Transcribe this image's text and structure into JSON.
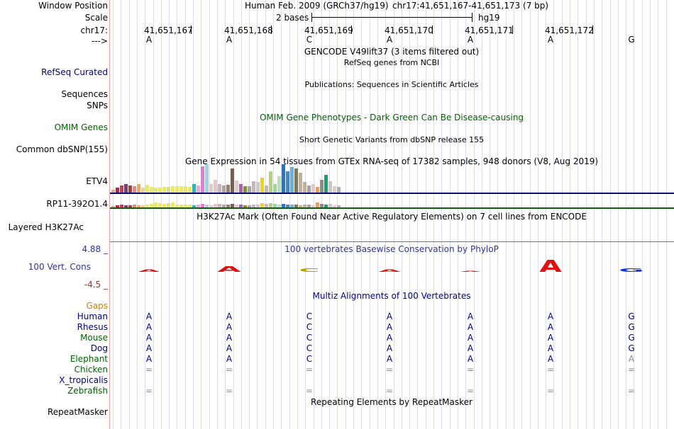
{
  "header": {
    "window_position_label": "Window Position",
    "scale_label": "Scale",
    "chrom_label": "chr17:",
    "strand_label": "--->",
    "assembly_text": "Human Feb. 2009 (GRCh37/hg19)",
    "position_text": "chr17:41,651,167-41,651,173 (7 bp)",
    "scale_text": "2 bases",
    "scale_db": "hg19",
    "coords": [
      "41,651,167",
      "41,651,168",
      "41,651,169",
      "41,651,170",
      "41,651,171",
      "41,651,172"
    ],
    "bases": [
      "A",
      "A",
      "C",
      "A",
      "A",
      "A",
      "G"
    ]
  },
  "tracks": {
    "gencode_title": "GENCODE V49lift37 (3 items filtered out)",
    "refseq_label": "RefSeq Curated",
    "refseq_title": "RefSeq genes from NCBI",
    "publications_title": "Publications: Sequences in Scientific Articles",
    "sequences_label": "Sequences",
    "snps_label": "SNPs",
    "omim_title": "OMIM Gene Phenotypes - Dark Green Can Be Disease-causing",
    "omim_label": "OMIM Genes",
    "dbsnp_title": "Short Genetic Variants from dbSNP release 155",
    "dbsnp_label": "Common dbSNP(155)",
    "gtex_title": "Gene Expression in 54 tissues from GTEx RNA-seq of 17382 samples, 948 donors (V8, Aug 2019)",
    "gtex_gene1": "ETV4",
    "gtex_gene2": "RP11-392O1.4",
    "h3k27_title": "H3K27Ac Mark (Often Found Near Active Regulatory Elements) on 7 cell lines from ENCODE",
    "h3k27_label": "Layered H3K27Ac",
    "cons_title": "100 vertebrates Basewise Conservation by PhyloP",
    "cons_label": "100 Vert. Cons",
    "cons_max": "4.88 _",
    "cons_min": "-4.5 _",
    "multiz_title": "Multiz Alignments of 100 Vertebrates",
    "gaps_label": "Gaps",
    "repeat_title": "Repeating Elements by RepeatMasker",
    "repeat_label": "RepeatMasker"
  },
  "alignment": {
    "species": [
      {
        "name": "Human",
        "row": [
          "A",
          "A",
          "C",
          "A",
          "A",
          "A",
          "G"
        ]
      },
      {
        "name": "Rhesus",
        "row": [
          "A",
          "A",
          "C",
          "A",
          "A",
          "A",
          "G"
        ]
      },
      {
        "name": "Mouse",
        "row": [
          "A",
          "A",
          "C",
          "A",
          "A",
          "A",
          "G"
        ]
      },
      {
        "name": "Dog",
        "row": [
          "A",
          "A",
          "C",
          "A",
          "A",
          "A",
          "G"
        ]
      },
      {
        "name": "Elephant",
        "row": [
          "A",
          "A",
          "C",
          "A",
          "A",
          "A",
          "A"
        ]
      },
      {
        "name": "Chicken",
        "row": [
          "=",
          "=",
          "=",
          "=",
          "=",
          "=",
          "="
        ]
      },
      {
        "name": "X_tropicalis",
        "row": [
          "",
          "",
          "",
          "",
          "",
          "",
          ""
        ]
      },
      {
        "name": "Zebrafish",
        "row": [
          "=",
          "=",
          "=",
          "=",
          "=",
          "=",
          "="
        ]
      }
    ]
  },
  "colors": {
    "navy": "#000080",
    "green": "#006400",
    "gaps": "#d08000",
    "cons_max": "#333399",
    "cons_min": "#993333",
    "gencode_line": "#0c0c78",
    "refseq_line": "#0b5e0b",
    "h3k27_line": "#9c5a86"
  },
  "gtex": {
    "etv4_values": [
      4,
      7,
      10,
      12,
      10,
      9,
      12,
      7,
      11,
      8,
      7,
      7,
      8,
      8,
      9,
      9,
      9,
      9,
      8,
      12,
      10,
      37,
      40,
      12,
      18,
      12,
      10,
      11,
      34,
      17,
      12,
      9,
      9,
      16,
      15,
      21,
      10,
      30,
      12,
      23,
      40,
      30,
      36,
      34,
      28,
      15,
      10,
      12,
      8,
      18,
      25,
      16,
      9,
      8
    ],
    "etv4_colors": [
      "#e9a586",
      "#c11f4a",
      "#d6354b",
      "#7e3b7a",
      "#a53f3f",
      "#f08484",
      "#eeaa54",
      "#f4d27d",
      "#eeee46",
      "#eeee46",
      "#eeee46",
      "#eeee46",
      "#eeee46",
      "#dfdf7e",
      "#eeee46",
      "#eeee46",
      "#eeee46",
      "#eeee46",
      "#eeee46",
      "#13bfbf",
      "#f2a3e8",
      "#e77ad7",
      "#9fd3e9",
      "#e3c9c9",
      "#e3c9c9",
      "#cdb5b5",
      "#b7a0a0",
      "#9f7f6a",
      "#7a5d4a",
      "#e3c9c9",
      "#b25bb8",
      "#8e8e28",
      "#a4a4a4",
      "#cdb5b5",
      "#c9c9c9",
      "#f5d310",
      "#cdb5b5",
      "#b3d17f",
      "#9bd69b",
      "#b4e3b4",
      "#1d77d3",
      "#3c8ad4",
      "#66b4d6",
      "#7e7a57",
      "#c9ad9a",
      "#c6b28c",
      "#a4a4a4",
      "#e3c9c9",
      "#f0a04a",
      "#8c8c8c",
      "#15a36b",
      "#c8c8c8",
      "#e3c9c9",
      "#b0b0b0"
    ],
    "rp11_values": [
      2,
      3,
      4,
      3,
      3,
      4,
      3,
      3,
      4,
      5,
      7,
      6,
      5,
      6,
      7,
      4,
      4,
      4,
      4,
      3,
      4,
      5,
      4,
      3,
      5,
      5,
      4,
      4,
      5,
      4,
      4,
      3,
      3,
      4,
      4,
      6,
      5,
      6,
      5,
      4,
      5,
      4,
      4,
      4,
      3,
      4,
      4,
      3,
      7,
      5,
      4,
      5,
      3,
      3
    ]
  }
}
